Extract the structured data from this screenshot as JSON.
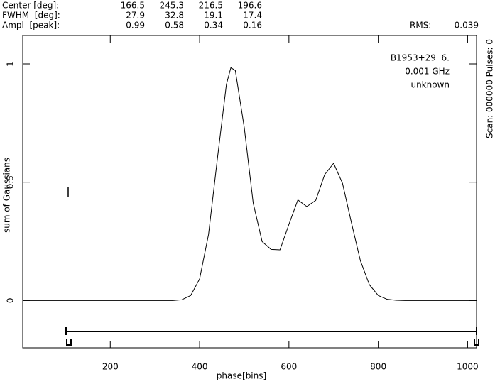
{
  "header": {
    "rows": [
      {
        "label": "Center [deg]:",
        "values": [
          166.5,
          245.3,
          216.5,
          196.6
        ]
      },
      {
        "label": "FWHM  [deg]:",
        "values": [
          27.9,
          32.8,
          19.1,
          17.4
        ]
      },
      {
        "label": "Ampl  [peak]:",
        "values": [
          0.99,
          0.58,
          0.34,
          0.16
        ]
      }
    ],
    "rms_label": "RMS:",
    "rms": 0.039,
    "side_label": "Scan: 000000   Pulses: 0"
  },
  "chart_data": {
    "type": "line",
    "x_label": "phase[bins]",
    "y_label": "sum of Gaussians",
    "annotations": [
      "B1953+29  6.",
      "0.001 GHz",
      "unknown"
    ],
    "x": [
      4,
      300,
      320,
      340,
      360,
      380,
      400,
      420,
      440,
      460,
      470,
      480,
      500,
      520,
      540,
      560,
      580,
      600,
      620,
      640,
      660,
      680,
      700,
      720,
      740,
      760,
      780,
      800,
      820,
      840,
      860,
      900,
      1020
    ],
    "series": [
      {
        "name": "sum of Gaussians",
        "color": "#000000",
        "values": [
          0,
          0,
          0,
          0,
          0.003,
          0.021,
          0.091,
          0.279,
          0.602,
          0.913,
          0.984,
          0.972,
          0.731,
          0.412,
          0.249,
          0.216,
          0.214,
          0.322,
          0.425,
          0.397,
          0.423,
          0.532,
          0.58,
          0.495,
          0.328,
          0.168,
          0.067,
          0.021,
          0.005,
          0.001,
          0,
          0,
          0
        ]
      }
    ],
    "xlim": [
      4,
      1020
    ],
    "ylim": [
      -0.2,
      1.12
    ],
    "xticks": [
      200,
      400,
      600,
      800,
      1000
    ],
    "yticks": [
      0,
      0.5,
      1
    ]
  }
}
